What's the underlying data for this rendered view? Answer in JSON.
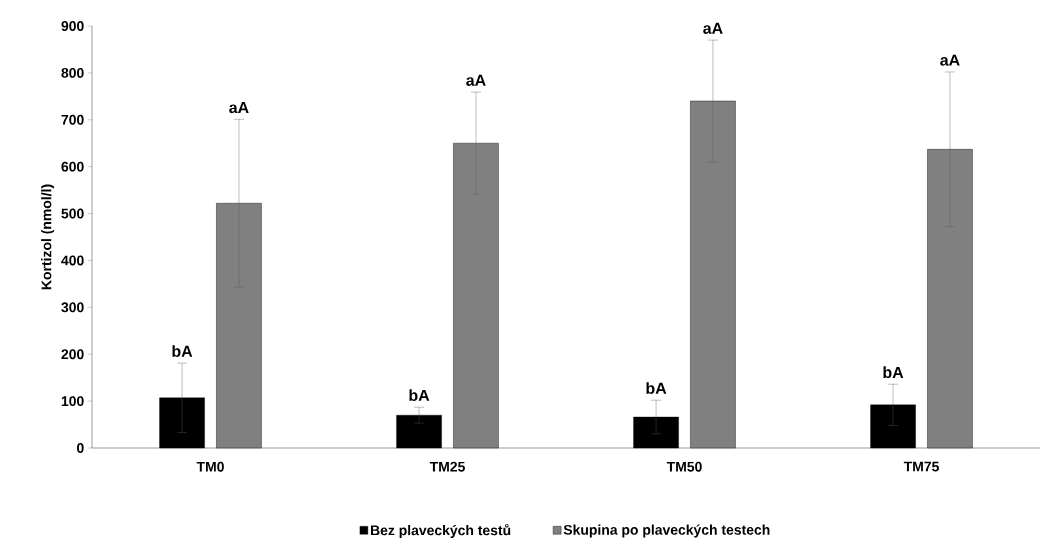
{
  "chart_data": {
    "type": "bar",
    "ylabel": "Kortizol (nmol/l)",
    "categories": [
      "TM0",
      "TM25",
      "TM50",
      "TM75"
    ],
    "series": [
      {
        "name": "Bez plaveckých testů",
        "color": "#000000",
        "values": [
          107,
          70,
          66,
          92
        ],
        "errors": [
          74,
          17,
          36,
          44
        ]
      },
      {
        "name": "Skupina po plaveckých testech",
        "color": "#808080",
        "values": [
          522,
          650,
          740,
          637
        ],
        "errors": [
          179,
          109,
          130,
          165
        ]
      }
    ],
    "ylim": [
      0,
      900
    ],
    "yticks": [
      0,
      100,
      200,
      300,
      400,
      500,
      600,
      700,
      800,
      900
    ],
    "grid": false,
    "legend": "bottom",
    "annotations": [
      "bA",
      "aA",
      "bA",
      "aA",
      "bA",
      "aA",
      "bA",
      "aA"
    ]
  }
}
